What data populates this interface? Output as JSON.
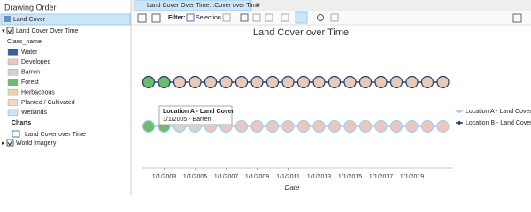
{
  "panel": {
    "title": "Drawing Order",
    "selected_layer": "Land Cover",
    "layer": "Land Cover Over Time",
    "class_field": "Class_name",
    "classes": [
      {
        "label": "Water",
        "color": "#3b5b9a"
      },
      {
        "label": "Developed",
        "color": "#e9c9b9"
      },
      {
        "label": "Barren",
        "color": "#d3d3d3"
      },
      {
        "label": "Forest",
        "color": "#6cbc6c"
      },
      {
        "label": "Herbaceous",
        "color": "#e6d3ae"
      },
      {
        "label": "Planted / Cultivated",
        "color": "#f1d7bc"
      },
      {
        "label": "Wetlands",
        "color": "#c7e3f4"
      }
    ],
    "charts_heading": "Charts",
    "chart_item": "Land Cover over Time",
    "basemap": "World Imagery"
  },
  "tab": {
    "title": "Land Cover Over Time...Cover over Time"
  },
  "toolbar": {
    "filter_label": "Filter:",
    "selection": "Selection"
  },
  "tooltip": {
    "title": "Location A - Land Cover",
    "text": "1/1/2005 - Barren"
  },
  "chart_data": {
    "type": "line",
    "title": "Land Cover over Time",
    "x_label": "Date",
    "categories": [
      null,
      "1/1/2003",
      null,
      "1/1/2005",
      null,
      "1/1/2007",
      null,
      "1/1/2009",
      null,
      "1/1/2011",
      null,
      "1/1/2013",
      null,
      "1/1/2015",
      null,
      "1/1/2017",
      null,
      "1/1/2019",
      null,
      null
    ],
    "series": [
      {
        "name": "Location A - Land Cover",
        "color": "#a9cde9",
        "values": [
          "Forest",
          "Forest",
          "Barren",
          "Barren",
          "Developed",
          "Developed",
          "Developed",
          "Developed",
          "Developed",
          "Developed",
          "Developed",
          "Developed",
          "Developed",
          "Developed",
          "Developed",
          "Developed",
          "Developed",
          "Developed",
          "Developed",
          "Developed"
        ]
      },
      {
        "name": "Location B - Land Cover",
        "color": "#23416f",
        "values": [
          "Forest",
          "Forest",
          "Developed",
          "Developed",
          "Developed",
          "Developed",
          "Developed",
          "Developed",
          "Developed",
          "Developed",
          "Developed",
          "Developed",
          "Developed",
          "Developed",
          "Developed",
          "Developed",
          "Developed",
          "Developed",
          "Developed",
          "Developed"
        ]
      }
    ],
    "legend": "right"
  }
}
